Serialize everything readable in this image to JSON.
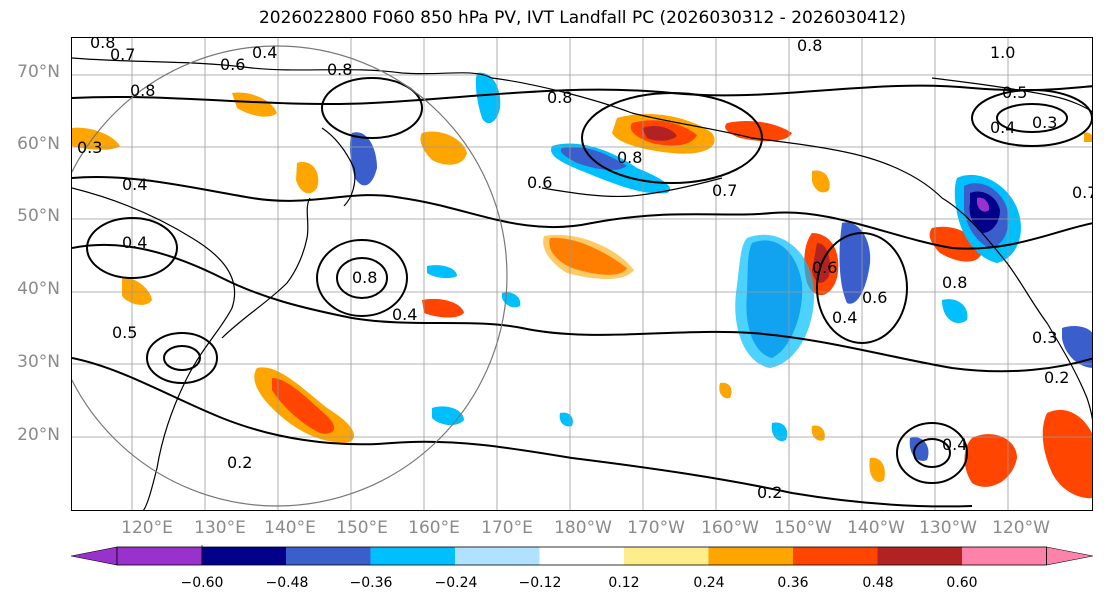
{
  "title": "2026022800 F060 850 hPa PV, IVT Landfall PC (2026030312 - 2026030412)",
  "axes": {
    "lat_labels": [
      "70°N",
      "60°N",
      "50°N",
      "40°N",
      "30°N",
      "20°N"
    ],
    "lon_labels": [
      "120°E",
      "130°E",
      "140°E",
      "150°E",
      "160°E",
      "170°E",
      "180°W",
      "170°W",
      "160°W",
      "150°W",
      "140°W",
      "130°W",
      "120°W"
    ]
  },
  "colorbar": {
    "ticks": [
      "−0.60",
      "−0.48",
      "−0.36",
      "−0.24",
      "−0.12",
      "0.12",
      "0.24",
      "0.36",
      "0.48",
      "0.60"
    ],
    "colors": [
      "#9932cc",
      "#00008b",
      "#3a5fcd",
      "#00bfff",
      "#b0e2ff",
      "#ffffff",
      "#ffec8b",
      "#ffa500",
      "#ff4500",
      "#b22222",
      "#ff82ab"
    ],
    "extend": "both"
  },
  "contour_labels": [
    "0.8",
    "0.7",
    "0.4",
    "0.6",
    "0.8",
    "0.8",
    "1.0",
    "0.8",
    "0.5",
    "0.4",
    "0.3",
    "0.3",
    "0.4",
    "0.6",
    "0.7",
    "0.8",
    "0.8",
    "0.6",
    "0.4",
    "0.4",
    "0.8",
    "0.6",
    "0.5",
    "0.4",
    "0.8",
    "0.2",
    "0.2",
    "0.4",
    "0.2",
    "0.3",
    "0.7"
  ],
  "map": {
    "projection": "PlateCarree",
    "extent_lat": [
      10,
      75
    ],
    "extent_lon": [
      "110°E",
      "250°E"
    ],
    "gridlines": true
  }
}
